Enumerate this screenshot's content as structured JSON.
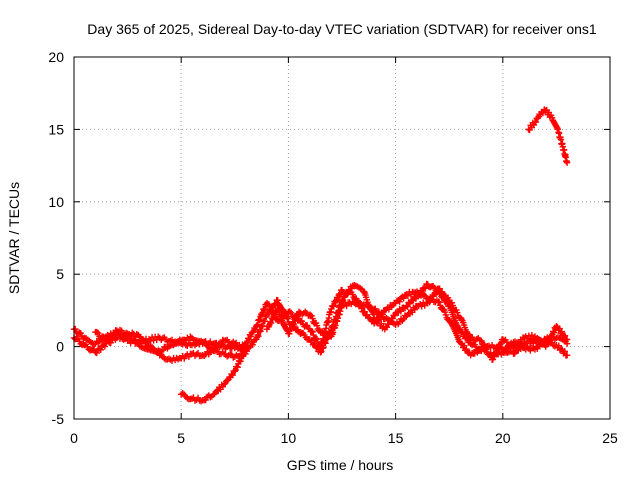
{
  "chart_data": {
    "type": "scatter",
    "title": "Day 365 of 2025, Sidereal Day-to-day VTEC variation (SDTVAR) for receiver ons1",
    "xlabel": "GPS time / hours",
    "ylabel": "SDTVAR / TECUs",
    "xlim": [
      0,
      25
    ],
    "ylim": [
      -5,
      20
    ],
    "xticks": [
      0,
      5,
      10,
      15,
      20,
      25
    ],
    "yticks": [
      -5,
      0,
      5,
      10,
      15,
      20
    ],
    "grid": true,
    "marker": "plus",
    "color": "#ff0000",
    "series": [
      {
        "name": "track-1",
        "points": [
          [
            0,
            1.2
          ],
          [
            0.5,
            0.6
          ],
          [
            1,
            0.2
          ],
          [
            1.5,
            0.7
          ],
          [
            2,
            0.9
          ],
          [
            2.5,
            0.4
          ],
          [
            3,
            0.3
          ],
          [
            3.5,
            0.5
          ],
          [
            4,
            0.6
          ],
          [
            4.5,
            0.4
          ],
          [
            5,
            0.2
          ],
          [
            5.5,
            0.1
          ],
          [
            6,
            0.3
          ],
          [
            6.5,
            0.2
          ],
          [
            7,
            0.0
          ],
          [
            7.5,
            -0.1
          ],
          [
            8,
            0.1
          ]
        ]
      },
      {
        "name": "track-2",
        "points": [
          [
            0,
            0.6
          ],
          [
            0.5,
            0.1
          ],
          [
            1,
            -0.4
          ],
          [
            1.5,
            0.2
          ],
          [
            2,
            0.6
          ],
          [
            2.5,
            0.8
          ],
          [
            3,
            0.2
          ],
          [
            3.5,
            -0.2
          ],
          [
            4,
            -0.6
          ],
          [
            4.5,
            -0.9
          ],
          [
            5,
            -0.8
          ],
          [
            5.5,
            -0.5
          ],
          [
            6,
            -0.6
          ],
          [
            6.5,
            -0.3
          ],
          [
            7,
            -0.5
          ],
          [
            7.5,
            -0.7
          ],
          [
            8,
            -0.5
          ]
        ]
      },
      {
        "name": "track-3",
        "points": [
          [
            1,
            1.0
          ],
          [
            1.5,
            0.4
          ],
          [
            2,
            1.1
          ],
          [
            2.5,
            0.9
          ],
          [
            3,
            0.8
          ],
          [
            3.5,
            0.0
          ],
          [
            4,
            -0.3
          ],
          [
            4.5,
            0.1
          ],
          [
            5,
            0.4
          ],
          [
            5.5,
            0.6
          ],
          [
            6,
            0.2
          ],
          [
            6.5,
            -0.1
          ],
          [
            7,
            0.4
          ],
          [
            7.5,
            0.2
          ],
          [
            8,
            -0.3
          ]
        ]
      },
      {
        "name": "track-4",
        "points": [
          [
            5,
            -3.3
          ],
          [
            5.5,
            -3.6
          ],
          [
            6,
            -3.7
          ],
          [
            6.5,
            -3.3
          ],
          [
            7,
            -2.6
          ],
          [
            7.5,
            -1.7
          ],
          [
            7.8,
            -0.8
          ],
          [
            8,
            -0.2
          ]
        ]
      },
      {
        "name": "track-5",
        "points": [
          [
            8,
            -0.3
          ],
          [
            8.5,
            0.5
          ],
          [
            9,
            2.2
          ],
          [
            9.5,
            3.2
          ],
          [
            10,
            1.7
          ],
          [
            10.5,
            1.0
          ],
          [
            11,
            0.5
          ],
          [
            11.5,
            -0.4
          ],
          [
            12,
            1.2
          ],
          [
            12.5,
            3.2
          ],
          [
            13,
            4.2
          ],
          [
            13.5,
            3.8
          ],
          [
            14,
            2.0
          ],
          [
            14.5,
            1.2
          ],
          [
            15,
            2.3
          ],
          [
            15.5,
            2.8
          ],
          [
            16,
            3.5
          ],
          [
            16.5,
            4.3
          ],
          [
            17,
            3.8
          ],
          [
            17.5,
            2.8
          ],
          [
            18,
            1.1
          ],
          [
            18.5,
            0.2
          ],
          [
            19,
            -0.3
          ],
          [
            19.5,
            0.1
          ],
          [
            20,
            -0.2
          ],
          [
            20.5,
            -0.5
          ],
          [
            21,
            0.2
          ],
          [
            21.5,
            0.4
          ],
          [
            22,
            0.3
          ],
          [
            22.5,
            0.1
          ],
          [
            23,
            -0.6
          ]
        ]
      },
      {
        "name": "track-6",
        "points": [
          [
            8,
            0.2
          ],
          [
            8.5,
            1.4
          ],
          [
            9,
            3.0
          ],
          [
            9.5,
            1.8
          ],
          [
            10,
            2.4
          ],
          [
            10.5,
            1.8
          ],
          [
            11,
            1.2
          ],
          [
            11.5,
            0.0
          ],
          [
            12,
            2.6
          ],
          [
            12.5,
            3.9
          ],
          [
            13,
            3.6
          ],
          [
            13.5,
            2.4
          ],
          [
            14,
            1.6
          ],
          [
            14.5,
            2.5
          ],
          [
            15,
            3.0
          ],
          [
            15.5,
            3.6
          ],
          [
            16,
            3.8
          ],
          [
            16.5,
            3.3
          ],
          [
            17,
            3.1
          ],
          [
            17.5,
            1.8
          ],
          [
            18,
            0.3
          ],
          [
            18.5,
            -0.6
          ],
          [
            19,
            -0.1
          ],
          [
            19.5,
            -0.6
          ],
          [
            20,
            -0.4
          ],
          [
            20.5,
            0.3
          ],
          [
            21,
            -0.1
          ],
          [
            21.5,
            -0.2
          ],
          [
            22,
            0.5
          ],
          [
            22.5,
            0.6
          ],
          [
            23,
            0.2
          ]
        ]
      },
      {
        "name": "track-7",
        "points": [
          [
            9,
            1.2
          ],
          [
            9.5,
            2.6
          ],
          [
            10,
            0.9
          ],
          [
            10.5,
            2.4
          ],
          [
            11,
            2.2
          ],
          [
            11.5,
            1.0
          ],
          [
            12,
            0.7
          ],
          [
            12.5,
            2.8
          ],
          [
            13,
            3.1
          ],
          [
            13.5,
            2.9
          ],
          [
            14,
            2.6
          ],
          [
            14.5,
            1.9
          ],
          [
            15,
            1.5
          ],
          [
            15.5,
            2.1
          ],
          [
            16,
            2.8
          ],
          [
            16.5,
            3.0
          ],
          [
            17,
            4.0
          ],
          [
            17.5,
            3.2
          ],
          [
            18,
            2.0
          ],
          [
            18.5,
            0.6
          ],
          [
            19,
            0.4
          ],
          [
            19.5,
            -0.9
          ],
          [
            20,
            0.5
          ],
          [
            20.5,
            -0.1
          ],
          [
            21,
            0.6
          ],
          [
            21.5,
            0.7
          ],
          [
            22,
            0.0
          ],
          [
            22.5,
            1.4
          ],
          [
            23,
            0.5
          ]
        ]
      },
      {
        "name": "track-8",
        "points": [
          [
            21.2,
            15.0
          ],
          [
            21.5,
            15.5
          ],
          [
            21.8,
            16.2
          ],
          [
            22,
            16.3
          ],
          [
            22.3,
            15.8
          ],
          [
            22.6,
            14.8
          ],
          [
            22.8,
            13.8
          ],
          [
            23,
            12.7
          ]
        ]
      }
    ]
  }
}
